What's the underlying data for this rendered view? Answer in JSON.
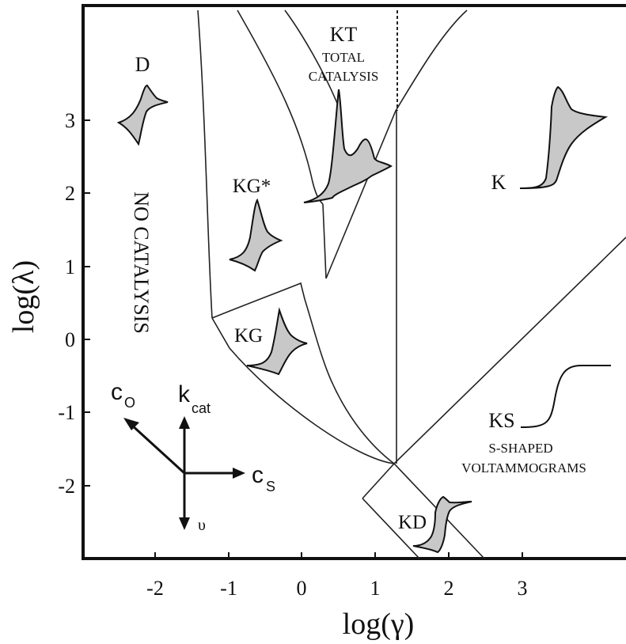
{
  "chart_data": {
    "type": "diagram",
    "xlabel": "log(γ)",
    "ylabel": "log(λ)",
    "x_ticks": [
      "-2",
      "-1",
      "0",
      "1",
      "2",
      "3"
    ],
    "y_ticks": [
      "3",
      "2",
      "1",
      "0",
      "-1",
      "-2"
    ],
    "xlim": [
      -3.2,
      4.3
    ],
    "ylim": [
      -2.9,
      4.4
    ],
    "zones": {
      "D": "D",
      "no_catalysis": "NO CATALYSIS",
      "KG_star": "KG*",
      "KG": "KG",
      "KT": "KT",
      "KT_desc_1": "TOTAL",
      "KT_desc_2": "CATALYSIS",
      "K": "K",
      "KS": "KS",
      "KS_desc_1": "S-SHAPED",
      "KS_desc_2": "VOLTAMMOGRAMS",
      "KD": "KD"
    },
    "arrows": {
      "co": "c",
      "co_sub": "O",
      "kcat": "k",
      "kcat_sub": "cat",
      "cs": "c",
      "cs_sub": "S",
      "upsilon": "υ"
    }
  }
}
